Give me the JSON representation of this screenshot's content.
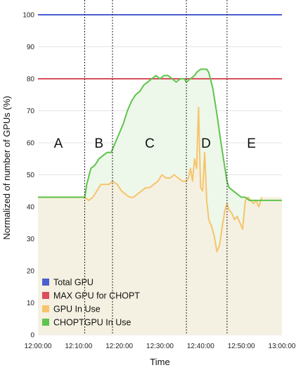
{
  "chart_data": {
    "type": "line",
    "xlabel": "Time",
    "ylabel": "Normalized of number of GPUs (%)",
    "ylim": [
      0,
      100
    ],
    "xlim": [
      "12:00:00",
      "13:00:00"
    ],
    "y_ticks": [
      0,
      10,
      20,
      30,
      40,
      50,
      60,
      70,
      80,
      90,
      100
    ],
    "x_ticks": [
      "12:00:00",
      "12:10:00",
      "12:20:00",
      "12:30:00",
      "12:40:00",
      "12:50:00",
      "13:00:00"
    ],
    "grid": true,
    "legend_position": "bottom-left",
    "phase_boundaries": [
      "12:11:30",
      "12:18:20",
      "12:36:30",
      "12:46:30"
    ],
    "regions": [
      {
        "label": "A",
        "x": "12:05:00",
        "y": 60
      },
      {
        "label": "B",
        "x": "12:15:00",
        "y": 60
      },
      {
        "label": "C",
        "x": "12:27:30",
        "y": 60
      },
      {
        "label": "D",
        "x": "12:41:20",
        "y": 60
      },
      {
        "label": "E",
        "x": "12:52:30",
        "y": 60
      }
    ],
    "series": [
      {
        "name": "Total GPU",
        "color": "#4a5fd1",
        "x": [
          "12:00:00",
          "13:00:00"
        ],
        "y": [
          100,
          100
        ]
      },
      {
        "name": "MAX GPU for  CHOPT",
        "color": "#d9505a",
        "x": [
          "12:00:00",
          "13:00:00"
        ],
        "y": [
          80,
          80
        ]
      },
      {
        "name": "GPU In Use",
        "color": "#f7c46c",
        "fill": "#f5f1e2",
        "x": [
          "12:00:00",
          "12:08:00",
          "12:11:30",
          "12:12:30",
          "12:13:30",
          "12:14:30",
          "12:15:30",
          "12:16:30",
          "12:17:30",
          "12:18:20",
          "12:19:30",
          "12:20:30",
          "12:21:30",
          "12:22:30",
          "12:23:30",
          "12:24:30",
          "12:25:30",
          "12:26:30",
          "12:27:30",
          "12:28:30",
          "12:29:30",
          "12:30:30",
          "12:31:30",
          "12:32:30",
          "12:33:30",
          "12:34:30",
          "12:35:30",
          "12:36:30",
          "12:37:00",
          "12:37:30",
          "12:38:00",
          "12:38:30",
          "12:39:00",
          "12:39:30",
          "12:40:00",
          "12:40:30",
          "12:41:00",
          "12:41:30",
          "12:42:00",
          "12:42:40",
          "12:43:20",
          "12:44:00",
          "12:44:40",
          "12:45:20",
          "12:46:00",
          "12:46:30",
          "12:47:00",
          "12:47:40",
          "12:48:20",
          "12:49:00",
          "12:49:40",
          "12:50:20",
          "12:51:00",
          "12:51:40",
          "12:52:20",
          "12:53:00",
          "12:53:40",
          "12:54:20",
          "12:55:00"
        ],
        "y": [
          43,
          43,
          43,
          42,
          43,
          45,
          47,
          47,
          47,
          48,
          47,
          45,
          44,
          43,
          43,
          44,
          45,
          46,
          46,
          47,
          48,
          50,
          49,
          49,
          50,
          49,
          48,
          48,
          49,
          52,
          48,
          55,
          52,
          71,
          46,
          45,
          57,
          42,
          36,
          34,
          31,
          26,
          28,
          34,
          39,
          41,
          39,
          38,
          36,
          37,
          35,
          33,
          42,
          43,
          42,
          41,
          42,
          40,
          43
        ]
      },
      {
        "name": "CHOPTGPU In Use",
        "color": "#5ec44d",
        "fill": "#edf7ea",
        "x": [
          "12:00:00",
          "12:08:00",
          "12:11:30",
          "12:12:00",
          "12:13:00",
          "12:14:00",
          "12:15:00",
          "12:16:00",
          "12:17:00",
          "12:18:00",
          "12:18:20",
          "12:19:00",
          "12:20:00",
          "12:21:00",
          "12:22:00",
          "12:23:00",
          "12:24:00",
          "12:25:00",
          "12:26:00",
          "12:27:00",
          "12:28:00",
          "12:29:00",
          "12:30:00",
          "12:31:00",
          "12:32:00",
          "12:33:00",
          "12:34:00",
          "12:35:00",
          "12:36:00",
          "12:36:30",
          "12:37:30",
          "12:38:30",
          "12:39:00",
          "12:40:00",
          "12:41:00",
          "12:41:30",
          "12:42:00",
          "12:43:00",
          "12:44:00",
          "12:45:00",
          "12:46:00",
          "12:46:30",
          "12:47:00",
          "12:48:00",
          "12:49:00",
          "12:50:00",
          "12:51:00",
          "12:52:00",
          "12:53:00",
          "12:54:00",
          "12:55:00",
          "12:57:00",
          "13:00:00"
        ],
        "y": [
          43,
          43,
          43,
          47,
          52,
          53,
          55,
          56,
          57,
          57,
          58,
          60,
          63,
          66,
          70,
          73,
          75,
          76,
          78,
          79,
          80,
          81,
          80,
          81,
          81,
          80,
          79,
          80,
          80,
          79,
          80,
          81,
          82,
          83,
          83,
          83,
          82,
          77,
          69,
          60,
          52,
          48,
          46,
          45,
          44,
          43,
          43,
          42,
          42,
          42,
          42,
          42,
          42
        ]
      }
    ]
  }
}
